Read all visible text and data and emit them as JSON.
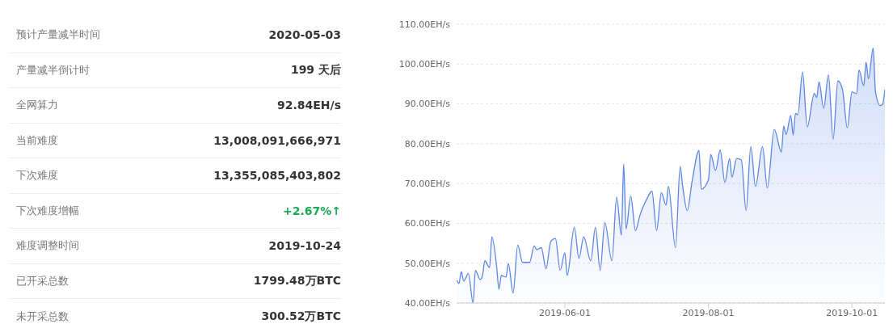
{
  "chart_data": [
    {
      "type": "other",
      "categories": [
        "预计产量减半时间",
        "产量减半倒计时",
        "全网算力",
        "当前难度",
        "下次难度",
        "下次难度增幅",
        "难度调整时间",
        "已开采总数",
        "未开采总数"
      ],
      "value_labels": [
        "2020-05-03",
        "199 天后",
        "92.84EH/s",
        "13,008,091,666,971",
        "13,355,085,403,802",
        "+2.67%↑",
        "2019-10-24",
        "1799.48万BTC",
        "300.52万BTC"
      ],
      "colors": [
        "#333333",
        "#333333",
        "#333333",
        "#333333",
        "#333333",
        "#1aaa55",
        "#333333",
        "#333333",
        "#333333"
      ]
    },
    {
      "type": "area",
      "color": "#5b86e5",
      "x": [
        "2019-04-16",
        "2019-04-17",
        "2019-04-18",
        "2019-04-19",
        "2019-04-21",
        "2019-04-23",
        "2019-04-24",
        "2019-04-26",
        "2019-04-27",
        "2019-04-28",
        "2019-04-30",
        "2019-05-01",
        "2019-05-03",
        "2019-05-04",
        "2019-05-05",
        "2019-05-07",
        "2019-05-08",
        "2019-05-10",
        "2019-05-12",
        "2019-05-14",
        "2019-05-17",
        "2019-05-19",
        "2019-05-20",
        "2019-05-22",
        "2019-05-24",
        "2019-05-26",
        "2019-05-28",
        "2019-05-30",
        "2019-06-01",
        "2019-06-02",
        "2019-06-05",
        "2019-06-07",
        "2019-06-09",
        "2019-06-12",
        "2019-06-14",
        "2019-06-16",
        "2019-06-18",
        "2019-06-21",
        "2019-06-23",
        "2019-06-25",
        "2019-06-26",
        "2019-06-27",
        "2019-06-29",
        "2019-07-01",
        "2019-07-03",
        "2019-07-06",
        "2019-07-08",
        "2019-07-10",
        "2019-07-12",
        "2019-07-14",
        "2019-07-15",
        "2019-07-18",
        "2019-07-20",
        "2019-07-21",
        "2019-07-23",
        "2019-07-25",
        "2019-07-28",
        "2019-07-29",
        "2019-08-01",
        "2019-08-02",
        "2019-08-04",
        "2019-08-06",
        "2019-08-08",
        "2019-08-10",
        "2019-08-11",
        "2019-08-13",
        "2019-08-15",
        "2019-08-17",
        "2019-08-19",
        "2019-08-21",
        "2019-08-24",
        "2019-08-26",
        "2019-08-29",
        "2019-09-01",
        "2019-09-02",
        "2019-09-03",
        "2019-09-05",
        "2019-09-06",
        "2019-09-07",
        "2019-09-08",
        "2019-09-10",
        "2019-09-12",
        "2019-09-15",
        "2019-09-16",
        "2019-09-17",
        "2019-09-19",
        "2019-09-21",
        "2019-09-23",
        "2019-09-25",
        "2019-09-27",
        "2019-09-29",
        "2019-10-01",
        "2019-10-03",
        "2019-10-04",
        "2019-10-06",
        "2019-10-07",
        "2019-10-08",
        "2019-10-10",
        "2019-10-11",
        "2019-10-13",
        "2019-10-14",
        "2019-10-15"
      ],
      "values": [
        45.7,
        44.9,
        47.9,
        45.5,
        47.4,
        40,
        48.2,
        45.9,
        46.9,
        50.6,
        48.9,
        56.6,
        49.2,
        43.5,
        46.9,
        46.5,
        49.9,
        42.5,
        54.6,
        50.2,
        50.2,
        54.4,
        53.4,
        53.9,
        48.6,
        55.4,
        56.2,
        48.2,
        52.6,
        46.9,
        59,
        51.2,
        56.6,
        50.6,
        59,
        48.2,
        60.2,
        50.6,
        66.6,
        57,
        74.9,
        58.6,
        66.9,
        58.2,
        62.2,
        66.3,
        68.1,
        58.2,
        67.7,
        64.6,
        69.3,
        53.9,
        74.3,
        69.6,
        63.2,
        70.3,
        78.3,
        68.6,
        70.9,
        77.3,
        73.3,
        78.4,
        70.3,
        76.3,
        71.6,
        76.3,
        75.9,
        63.2,
        79.3,
        69.3,
        79.3,
        68.9,
        83.6,
        77.9,
        84.4,
        82.3,
        87.1,
        82.2,
        87.6,
        87.3,
        98,
        84.2,
        92.6,
        91.6,
        95.5,
        88.9,
        97.3,
        81.1,
        95.8,
        93.6,
        84,
        93,
        92.6,
        98.5,
        94.6,
        100.5,
        96.3,
        104,
        93,
        89.6,
        89.9,
        93.6
      ],
      "xlim": [
        "2019-04-16",
        "2019-10-15"
      ],
      "xticks": [
        "2019-06-01",
        "2019-08-01",
        "2019-10-01"
      ],
      "ylim": [
        40,
        110
      ],
      "yticks": [
        {
          "value": 40,
          "label": "40.00EH/s"
        },
        {
          "value": 50,
          "label": "50.00EH/s"
        },
        {
          "value": 60,
          "label": "60.00EH/s"
        },
        {
          "value": 70,
          "label": "70.00EH/s"
        },
        {
          "value": 80,
          "label": "80.00EH/s"
        },
        {
          "value": 90,
          "label": "90.00EH/s"
        },
        {
          "value": 100,
          "label": "100.00EH/s"
        },
        {
          "value": 110,
          "label": "110.00EH/s"
        }
      ],
      "grid": "y",
      "marker": "none"
    }
  ]
}
